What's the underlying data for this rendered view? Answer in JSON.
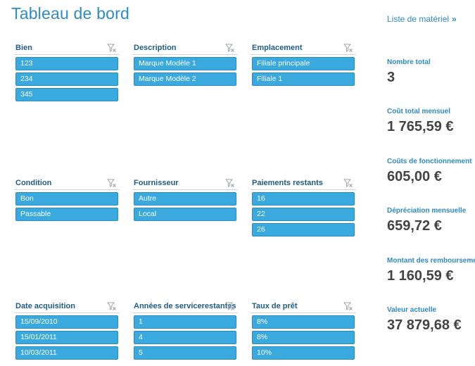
{
  "page": {
    "title": "Tableau de bord",
    "nav_link": {
      "label": "Liste de matériel",
      "chevron": "»"
    }
  },
  "icons": {
    "clear_filter": "funnel-clear-icon"
  },
  "colors": {
    "accent": "#2e8bc4",
    "item_fill": "#3aa9de",
    "header_text": "#1e5c8a",
    "value_text": "#444444"
  },
  "slicers": [
    {
      "title": "Bien",
      "items": [
        "123",
        "234",
        "345"
      ]
    },
    {
      "title": "Description",
      "items": [
        "Marque Modèle 1",
        "Marque Modèle 2"
      ]
    },
    {
      "title": "Emplacement",
      "items": [
        "Filiale principale",
        "Filiale 1"
      ]
    },
    {
      "title": "Condition",
      "items": [
        "Bon",
        "Passable"
      ]
    },
    {
      "title": "Fournisseur",
      "items": [
        "Autre",
        "Local"
      ]
    },
    {
      "title": "Paiements restants",
      "items": [
        "16",
        "22",
        "26"
      ]
    },
    {
      "title": "Date acquisition",
      "items": [
        "15/09/2010",
        "15/01/2011",
        "10/03/2011"
      ]
    },
    {
      "title": "Années de servicerestantes",
      "items": [
        "1",
        "4",
        "5"
      ]
    },
    {
      "title": "Taux de prêt",
      "items": [
        "8%",
        "8%",
        "10%"
      ]
    }
  ],
  "kpis": [
    {
      "label": "Nombre total",
      "value": "3"
    },
    {
      "label": "Coût total mensuel",
      "value": "1 765,59 €"
    },
    {
      "label": "Coûts de fonctionnement",
      "value": "605,00 €"
    },
    {
      "label": "Dépréciation mensuelle",
      "value": "659,72 €"
    },
    {
      "label": "Montant des remboursemer",
      "value": "1 160,59 €"
    },
    {
      "label": "Valeur actuelle",
      "value": "37 879,68 €"
    }
  ]
}
